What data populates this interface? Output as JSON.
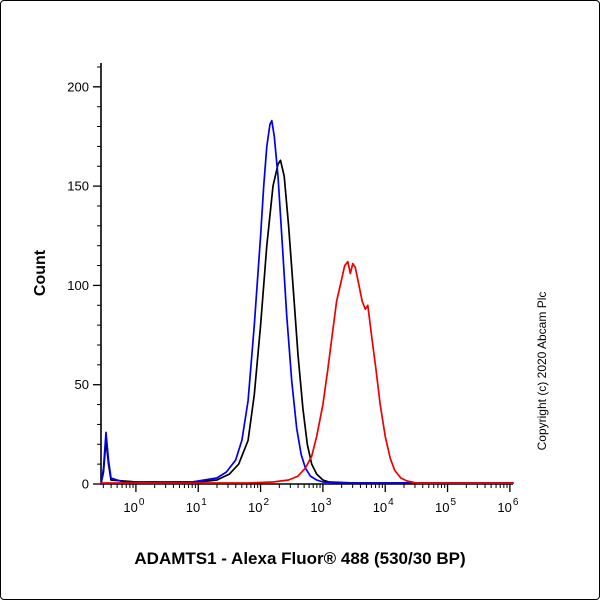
{
  "copyright": "Copyright (c) 2020 Abcam Plc",
  "chart_data": {
    "type": "line",
    "title": "",
    "xlabel": "ADAMTS1 - Alexa Fluor® 488 (530/30 BP)",
    "ylabel": "Count",
    "x_scale": "log",
    "x_tick_base": "10",
    "x_ticks_exponents": [
      0,
      1,
      2,
      3,
      4,
      5,
      6
    ],
    "x_range_log10": [
      -0.56,
      6.05
    ],
    "y_ticks": [
      0,
      50,
      100,
      150,
      200
    ],
    "y_minor_step": 10,
    "y_range": [
      0,
      212
    ],
    "grid": false,
    "legend": null,
    "series": [
      {
        "name": "black-curve",
        "color": "#000000",
        "points_log10x_count": [
          [
            -0.56,
            0
          ],
          [
            -0.52,
            6
          ],
          [
            -0.48,
            22
          ],
          [
            -0.44,
            10
          ],
          [
            -0.4,
            2
          ],
          [
            0,
            1
          ],
          [
            0.5,
            1
          ],
          [
            1.0,
            1
          ],
          [
            1.3,
            2
          ],
          [
            1.5,
            5
          ],
          [
            1.65,
            10
          ],
          [
            1.8,
            22
          ],
          [
            1.9,
            45
          ],
          [
            2.0,
            80
          ],
          [
            2.1,
            120
          ],
          [
            2.2,
            150
          ],
          [
            2.28,
            161
          ],
          [
            2.32,
            163
          ],
          [
            2.38,
            155
          ],
          [
            2.45,
            130
          ],
          [
            2.52,
            100
          ],
          [
            2.6,
            65
          ],
          [
            2.68,
            38
          ],
          [
            2.75,
            20
          ],
          [
            2.82,
            10
          ],
          [
            2.9,
            5
          ],
          [
            3.0,
            2
          ],
          [
            3.1,
            1
          ],
          [
            3.5,
            0.5
          ],
          [
            4.5,
            0.5
          ],
          [
            6.05,
            0.5
          ]
        ]
      },
      {
        "name": "blue-curve",
        "color": "#0000ee",
        "points_log10x_count": [
          [
            -0.56,
            0
          ],
          [
            -0.52,
            8
          ],
          [
            -0.48,
            26
          ],
          [
            -0.44,
            12
          ],
          [
            -0.4,
            3
          ],
          [
            -0.2,
            1
          ],
          [
            0,
            1
          ],
          [
            0.3,
            0.5
          ],
          [
            0.6,
            1
          ],
          [
            0.9,
            1
          ],
          [
            1.1,
            2
          ],
          [
            1.3,
            3
          ],
          [
            1.45,
            6
          ],
          [
            1.6,
            12
          ],
          [
            1.7,
            22
          ],
          [
            1.8,
            42
          ],
          [
            1.9,
            80
          ],
          [
            2.0,
            125
          ],
          [
            2.05,
            150
          ],
          [
            2.1,
            170
          ],
          [
            2.15,
            181
          ],
          [
            2.18,
            183
          ],
          [
            2.22,
            175
          ],
          [
            2.28,
            155
          ],
          [
            2.35,
            120
          ],
          [
            2.42,
            85
          ],
          [
            2.5,
            52
          ],
          [
            2.58,
            28
          ],
          [
            2.65,
            15
          ],
          [
            2.72,
            8
          ],
          [
            2.8,
            4
          ],
          [
            2.9,
            2
          ],
          [
            3.0,
            1
          ],
          [
            3.3,
            0.5
          ],
          [
            4,
            0.5
          ],
          [
            5,
            0.5
          ],
          [
            6.05,
            0.5
          ]
        ]
      },
      {
        "name": "red-curve",
        "color": "#ee0000",
        "points_log10x_count": [
          [
            -0.56,
            0.5
          ],
          [
            0,
            0.5
          ],
          [
            1,
            0.5
          ],
          [
            1.8,
            0.5
          ],
          [
            2.2,
            1
          ],
          [
            2.45,
            2
          ],
          [
            2.6,
            4
          ],
          [
            2.72,
            8
          ],
          [
            2.82,
            14
          ],
          [
            2.9,
            24
          ],
          [
            3.0,
            40
          ],
          [
            3.08,
            58
          ],
          [
            3.15,
            75
          ],
          [
            3.22,
            92
          ],
          [
            3.3,
            103
          ],
          [
            3.35,
            110
          ],
          [
            3.4,
            112
          ],
          [
            3.44,
            106
          ],
          [
            3.48,
            111
          ],
          [
            3.52,
            109
          ],
          [
            3.58,
            100
          ],
          [
            3.63,
            92
          ],
          [
            3.68,
            88
          ],
          [
            3.72,
            90
          ],
          [
            3.78,
            75
          ],
          [
            3.85,
            58
          ],
          [
            3.92,
            40
          ],
          [
            4.0,
            24
          ],
          [
            4.08,
            13
          ],
          [
            4.15,
            7
          ],
          [
            4.25,
            3
          ],
          [
            4.35,
            1.5
          ],
          [
            4.5,
            0.5
          ],
          [
            5,
            0.5
          ],
          [
            6.05,
            0.5
          ]
        ]
      }
    ]
  }
}
